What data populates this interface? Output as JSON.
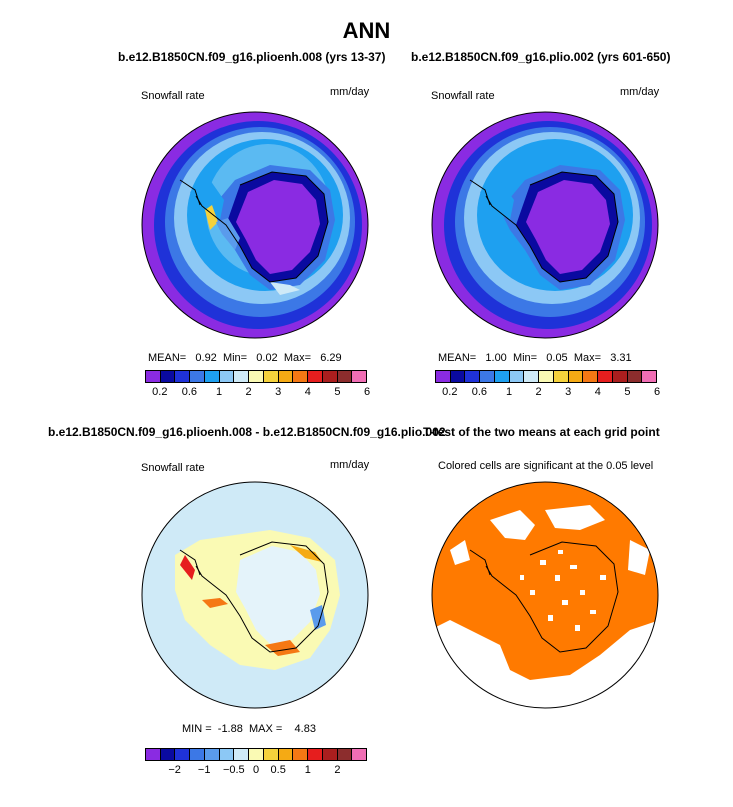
{
  "main_title": "ANN",
  "panels": {
    "p1": {
      "title": "b.e12.B1850CN.f09_g16.plioenh.008 (yrs 13-37)",
      "left_label": "Snowfall rate",
      "right_label": "mm/day",
      "mean_label": "MEAN=",
      "mean": "0.92",
      "min_label": "Min=",
      "min": "0.02",
      "max_label": "Max=",
      "max": "6.29"
    },
    "p2": {
      "title": "b.e12.B1850CN.f09_g16.plio.002 (yrs 601-650)",
      "left_label": "Snowfall rate",
      "right_label": "mm/day",
      "mean_label": "MEAN=",
      "mean": "1.00",
      "min_label": "Min=",
      "min": "0.05",
      "max_label": "Max=",
      "max": "3.31"
    },
    "p3": {
      "title": "b.e12.B1850CN.f09_g16.plioenh.008 - b.e12.B1850CN.f09_g16.plio.002",
      "left_label": "Snowfall rate",
      "right_label": "mm/day",
      "min_label": "MIN =",
      "min": "-1.88",
      "max_label": "MAX =",
      "max": "4.83"
    },
    "p4": {
      "title": "T-test of the two means at each grid point",
      "subtitle": "Colored cells are significant at the 0.05 level"
    }
  },
  "colorbar_abs": {
    "colors": [
      "#8a2be2",
      "#0a0aa0",
      "#1f32d8",
      "#3c78e6",
      "#1ea0f0",
      "#8cc8f5",
      "#cfeaf7",
      "#fafab4",
      "#f5d23c",
      "#f5aa14",
      "#f57814",
      "#e61e1e",
      "#aa1e1e",
      "#8c2d2d",
      "#f06eb4"
    ],
    "ticks": [
      "0.2",
      "0.6",
      "1",
      "2",
      "3",
      "4",
      "5",
      "6"
    ]
  },
  "colorbar_diff": {
    "colors": [
      "#8a2be2",
      "#0a0aa0",
      "#1f32d8",
      "#3c78e6",
      "#5a9bec",
      "#8cc8f5",
      "#cfeaf7",
      "#fafab4",
      "#f5d23c",
      "#f5aa14",
      "#f57814",
      "#e61e1e",
      "#aa1e1e",
      "#8c2d2d",
      "#f06eb4"
    ],
    "ticks": [
      "−2",
      "−1",
      "−0.5",
      "0",
      "0.5",
      "1",
      "2"
    ]
  },
  "ttest_color": "#ff7a00"
}
